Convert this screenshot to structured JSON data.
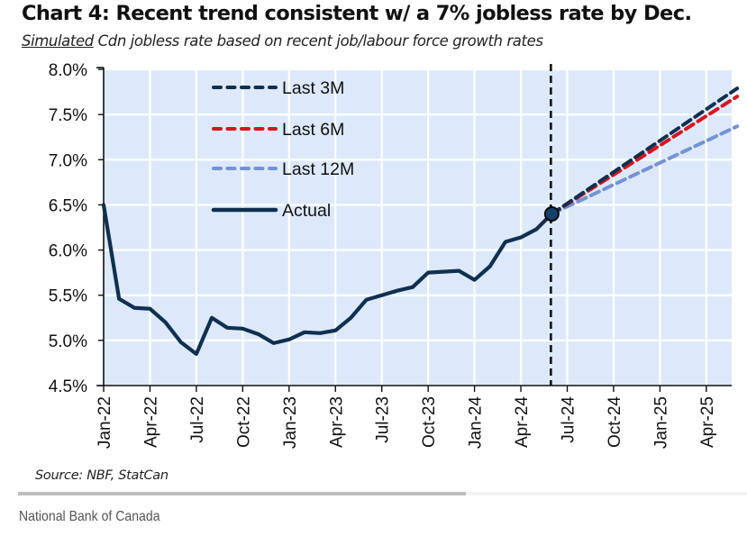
{
  "caption": "National Bank of Canada",
  "colors": {
    "plot_bg": "#dde9fa",
    "grid": "#ffffff",
    "actual": "#0f3050",
    "last_3m": "#0f3050",
    "last_6m": "#d9141e",
    "last_12m": "#7393d4",
    "marker_line": "#111111"
  },
  "chart_data": {
    "type": "line",
    "title": "Chart 4: Recent trend consistent w/ a 7% jobless rate by Dec.",
    "subtitle_underlined": "Simulated",
    "subtitle_rest": " Cdn jobless rate based on recent job/labour force growth rates",
    "source": "Source: NBF, StatCan",
    "xlabel": "",
    "ylabel": "",
    "ylim": [
      4.5,
      8.0
    ],
    "yticks": [
      4.5,
      5.0,
      5.5,
      6.0,
      6.5,
      7.0,
      7.5,
      8.0
    ],
    "ytick_labels": [
      "4.5%",
      "5.0%",
      "5.5%",
      "6.0%",
      "6.5%",
      "7.0%",
      "7.5%",
      "8.0%"
    ],
    "xlim": [
      "Jan-22",
      "Jun-25"
    ],
    "xlim_month_index": [
      0,
      41
    ],
    "xtick_labels": [
      "Jan-22",
      "Apr-22",
      "Jul-22",
      "Oct-22",
      "Jan-23",
      "Apr-23",
      "Jul-23",
      "Oct-23",
      "Jan-24",
      "Apr-24",
      "Jul-24",
      "Oct-24",
      "Jan-25",
      "Apr-25"
    ],
    "xtick_month_index": [
      0,
      3,
      6,
      9,
      12,
      15,
      18,
      21,
      24,
      27,
      30,
      33,
      36,
      39
    ],
    "grid": true,
    "legend_position": "top-left",
    "vertical_marker": {
      "label": "Jun-24",
      "month_index": 29,
      "style": "dashed"
    },
    "highlight_point": {
      "month": "Jun-24",
      "month_index": 29,
      "value": 6.4
    },
    "series": [
      {
        "name": "Actual",
        "style": "solid",
        "start_month": "Jan-22",
        "month_index": [
          0,
          1,
          2,
          3,
          4,
          5,
          6,
          7,
          8,
          9,
          10,
          11,
          12,
          13,
          14,
          15,
          16,
          17,
          18,
          19,
          20,
          21,
          22,
          23,
          24,
          25,
          26,
          27,
          28,
          29
        ],
        "values": [
          6.5,
          5.46,
          5.36,
          5.35,
          5.2,
          4.98,
          4.85,
          5.25,
          5.14,
          5.13,
          5.07,
          4.97,
          5.01,
          5.09,
          5.08,
          5.11,
          5.25,
          5.45,
          5.5,
          5.55,
          5.59,
          5.75,
          5.76,
          5.77,
          5.67,
          5.82,
          6.09,
          6.14,
          6.23,
          6.4
        ]
      },
      {
        "name": "Last 3M",
        "style": "dashed",
        "month_index": [
          29,
          41
        ],
        "values": [
          6.4,
          7.77
        ]
      },
      {
        "name": "Last 6M",
        "style": "dashed",
        "month_index": [
          29,
          41
        ],
        "values": [
          6.4,
          7.72
        ]
      },
      {
        "name": "Last 12M",
        "style": "dashed",
        "month_index": [
          29,
          41
        ],
        "values": [
          6.4,
          7.37
        ]
      }
    ],
    "legend": [
      "Last 3M",
      "Last 6M",
      "Last 12M",
      "Actual"
    ]
  }
}
